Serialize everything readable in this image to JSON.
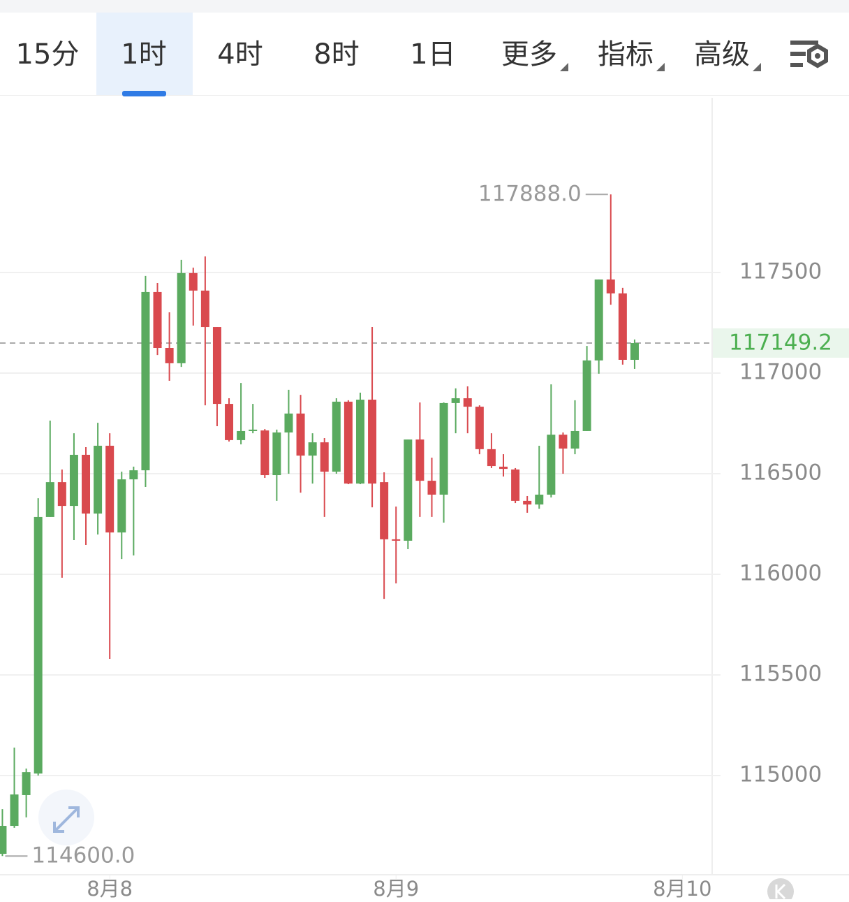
{
  "toolbar": {
    "tabs": [
      "15分",
      "1时",
      "4时",
      "8时",
      "1日",
      "更多",
      "指标",
      "高级"
    ],
    "selected": 1
  },
  "chart_data": {
    "type": "candlestick",
    "open": [
      114611,
      114750,
      114903,
      115010,
      116285,
      116458,
      116340,
      116594,
      116302,
      116639,
      116208,
      116472,
      116517,
      117403,
      117125,
      117049,
      117497,
      117410,
      117229,
      116847,
      116667,
      116712,
      116715,
      116493,
      116705,
      116799,
      116590,
      116656,
      116510,
      116858,
      116451,
      116868,
      116458,
      116174,
      116167,
      116670,
      116465,
      116396,
      116851,
      116875,
      116833,
      116622,
      116535,
      116521,
      116365,
      116347,
      116396,
      116694,
      116625,
      116712,
      117063,
      117465,
      117396,
      117066
    ],
    "high": [
      114833,
      115139,
      115035,
      116378,
      116764,
      116521,
      116701,
      116632,
      116753,
      116701,
      116510,
      116535,
      117483,
      117448,
      117302,
      117563,
      117524,
      117580,
      117229,
      116875,
      116951,
      116847,
      116722,
      116719,
      116917,
      116892,
      116701,
      116677,
      116875,
      116865,
      116903,
      117229,
      116507,
      116337,
      116670,
      116854,
      116580,
      116854,
      116924,
      116934,
      116840,
      116701,
      116597,
      116528,
      116389,
      116639,
      116944,
      116705,
      116865,
      117135,
      117465,
      117888,
      117424,
      117167
    ],
    "low": [
      114600,
      114740,
      114792,
      115000,
      116285,
      115983,
      116170,
      116146,
      116198,
      115580,
      116076,
      116094,
      116434,
      117090,
      116962,
      117031,
      117236,
      116840,
      116736,
      116660,
      116646,
      116701,
      116479,
      116365,
      116500,
      116406,
      116451,
      116285,
      116500,
      116448,
      116448,
      116333,
      115878,
      115955,
      116125,
      116285,
      116285,
      116257,
      116701,
      116701,
      116597,
      116528,
      116486,
      116354,
      116306,
      116326,
      116382,
      116500,
      116597,
      116712,
      116997,
      117340,
      117042,
      117021
    ],
    "close": [
      114750,
      114906,
      115017,
      116285,
      116458,
      116340,
      116594,
      116302,
      116639,
      116208,
      116472,
      116517,
      117403,
      117125,
      117049,
      117497,
      117410,
      117229,
      116847,
      116667,
      116712,
      116719,
      116493,
      116705,
      116799,
      116590,
      116656,
      116510,
      116858,
      116451,
      116868,
      116451,
      116174,
      116170,
      116670,
      116465,
      116396,
      116851,
      116875,
      116833,
      116622,
      116538,
      116524,
      116365,
      116347,
      116396,
      116694,
      116625,
      116712,
      117063,
      117465,
      117396,
      117066,
      117149.2
    ],
    "up_color": "#5aaa5f",
    "down_color": "#d9494e",
    "ylim": [
      114514,
      118368
    ],
    "yticks": [
      115000,
      115500,
      116000,
      116500,
      117000,
      117500
    ],
    "grid": true,
    "xlim": [
      -0.2,
      59.5
    ],
    "xticks": [
      {
        "value": 9,
        "label": "8月8"
      },
      {
        "value": 33,
        "label": "8月9"
      },
      {
        "value": 57,
        "label": "8月10"
      }
    ],
    "last_price": 117149.2,
    "max_marker": {
      "value": 117888,
      "label": "117888.0"
    },
    "min_marker": {
      "value": 114600,
      "label": "114600.0"
    }
  }
}
